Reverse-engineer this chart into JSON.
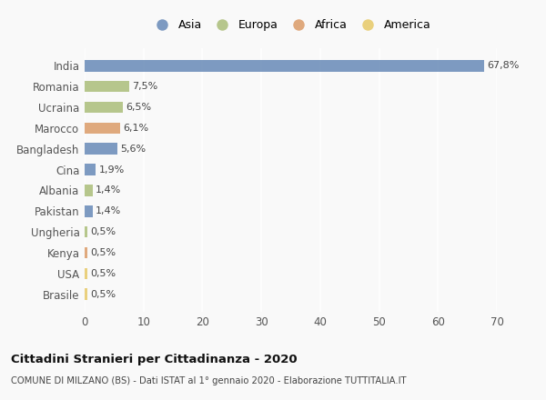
{
  "countries": [
    "India",
    "Romania",
    "Ucraina",
    "Marocco",
    "Bangladesh",
    "Cina",
    "Albania",
    "Pakistan",
    "Ungheria",
    "Kenya",
    "USA",
    "Brasile"
  ],
  "values": [
    67.8,
    7.5,
    6.5,
    6.1,
    5.6,
    1.9,
    1.4,
    1.4,
    0.5,
    0.5,
    0.5,
    0.5
  ],
  "labels": [
    "67,8%",
    "7,5%",
    "6,5%",
    "6,1%",
    "5,6%",
    "1,9%",
    "1,4%",
    "1,4%",
    "0,5%",
    "0,5%",
    "0,5%",
    "0,5%"
  ],
  "continents": [
    "Asia",
    "Europa",
    "Europa",
    "Africa",
    "Asia",
    "Asia",
    "Europa",
    "Asia",
    "Europa",
    "Africa",
    "America",
    "America"
  ],
  "colors": {
    "Asia": "#7090bb",
    "Europa": "#afc180",
    "Africa": "#dda070",
    "America": "#e8cc70"
  },
  "legend_labels": [
    "Asia",
    "Europa",
    "Africa",
    "America"
  ],
  "legend_colors": [
    "#7090bb",
    "#afc180",
    "#dda070",
    "#e8cc70"
  ],
  "title": "Cittadini Stranieri per Cittadinanza - 2020",
  "subtitle": "COMUNE DI MILZANO (BS) - Dati ISTAT al 1° gennaio 2020 - Elaborazione TUTTITALIA.IT",
  "xlim": [
    0,
    70
  ],
  "xticks": [
    0,
    10,
    20,
    30,
    40,
    50,
    60,
    70
  ],
  "background_color": "#f9f9f9",
  "grid_color": "#ffffff",
  "bar_height": 0.55
}
